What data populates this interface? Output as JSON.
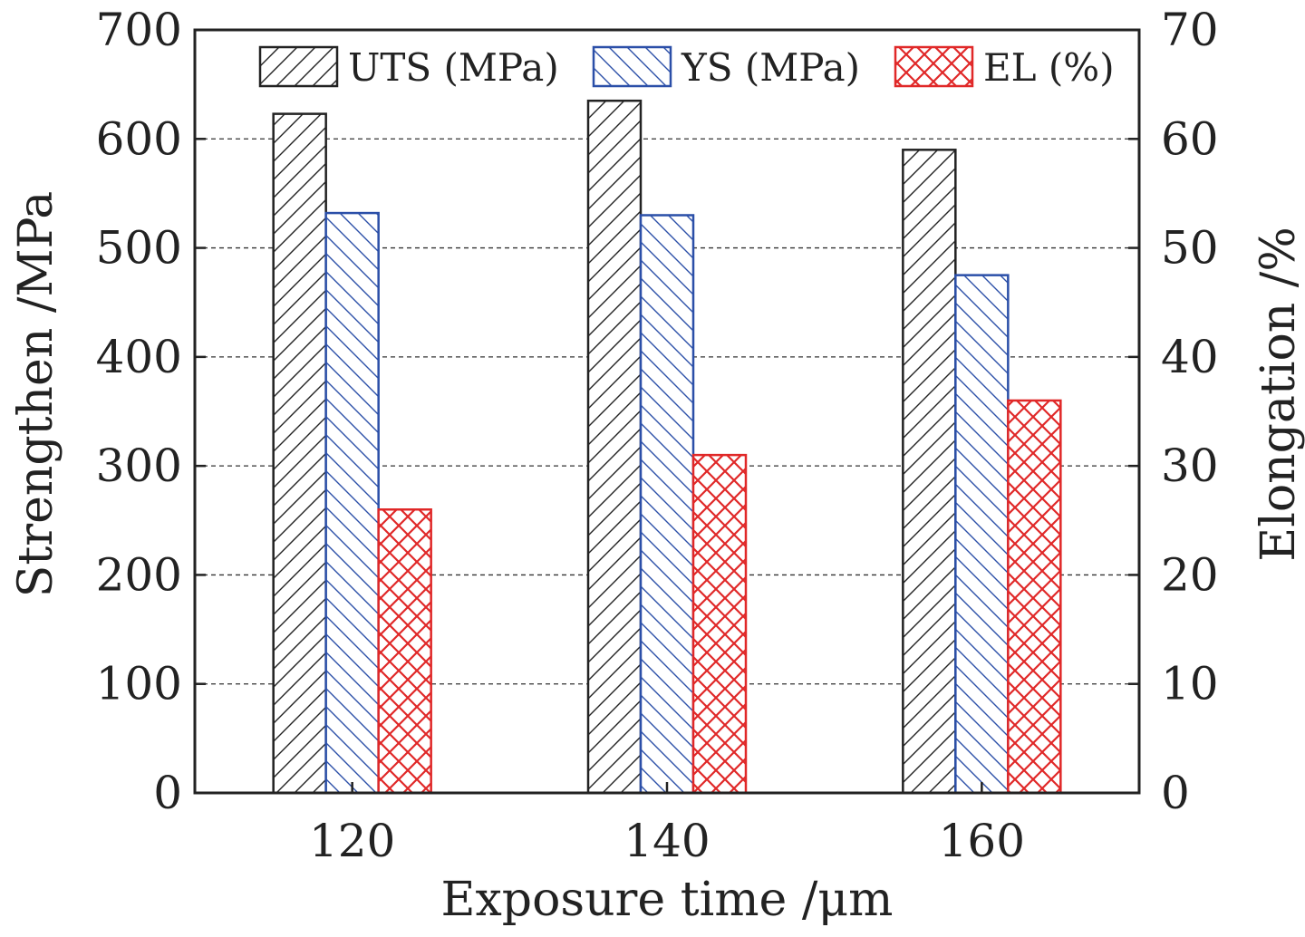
{
  "chart_data": {
    "type": "bar",
    "title": "",
    "xlabel": "Exposure time /μm",
    "ylabel": "Strengthen /MPa",
    "y2label": "Elongation /%",
    "categories": [
      "120",
      "140",
      "160"
    ],
    "ylim": [
      0,
      700
    ],
    "y2lim": [
      0,
      70
    ],
    "yticks": [
      "0",
      "100",
      "200",
      "300",
      "400",
      "500",
      "600",
      "700"
    ],
    "y2ticks": [
      "0",
      "10",
      "20",
      "30",
      "40",
      "50",
      "60",
      "70"
    ],
    "grid": "horizontal dashed",
    "legend_position": "top",
    "series": [
      {
        "name": "UTS (MPa)",
        "axis": "left",
        "values": [
          623,
          635,
          590
        ],
        "color": "#222222",
        "pattern": "diagonal-forward"
      },
      {
        "name": "YS (MPa)",
        "axis": "left",
        "values": [
          532,
          530,
          475
        ],
        "color": "#2b4fa8",
        "pattern": "diagonal-back"
      },
      {
        "name": "EL (%)",
        "axis": "right",
        "values": [
          26,
          31,
          36
        ],
        "color": "#e02828",
        "pattern": "crosshatch"
      }
    ]
  }
}
